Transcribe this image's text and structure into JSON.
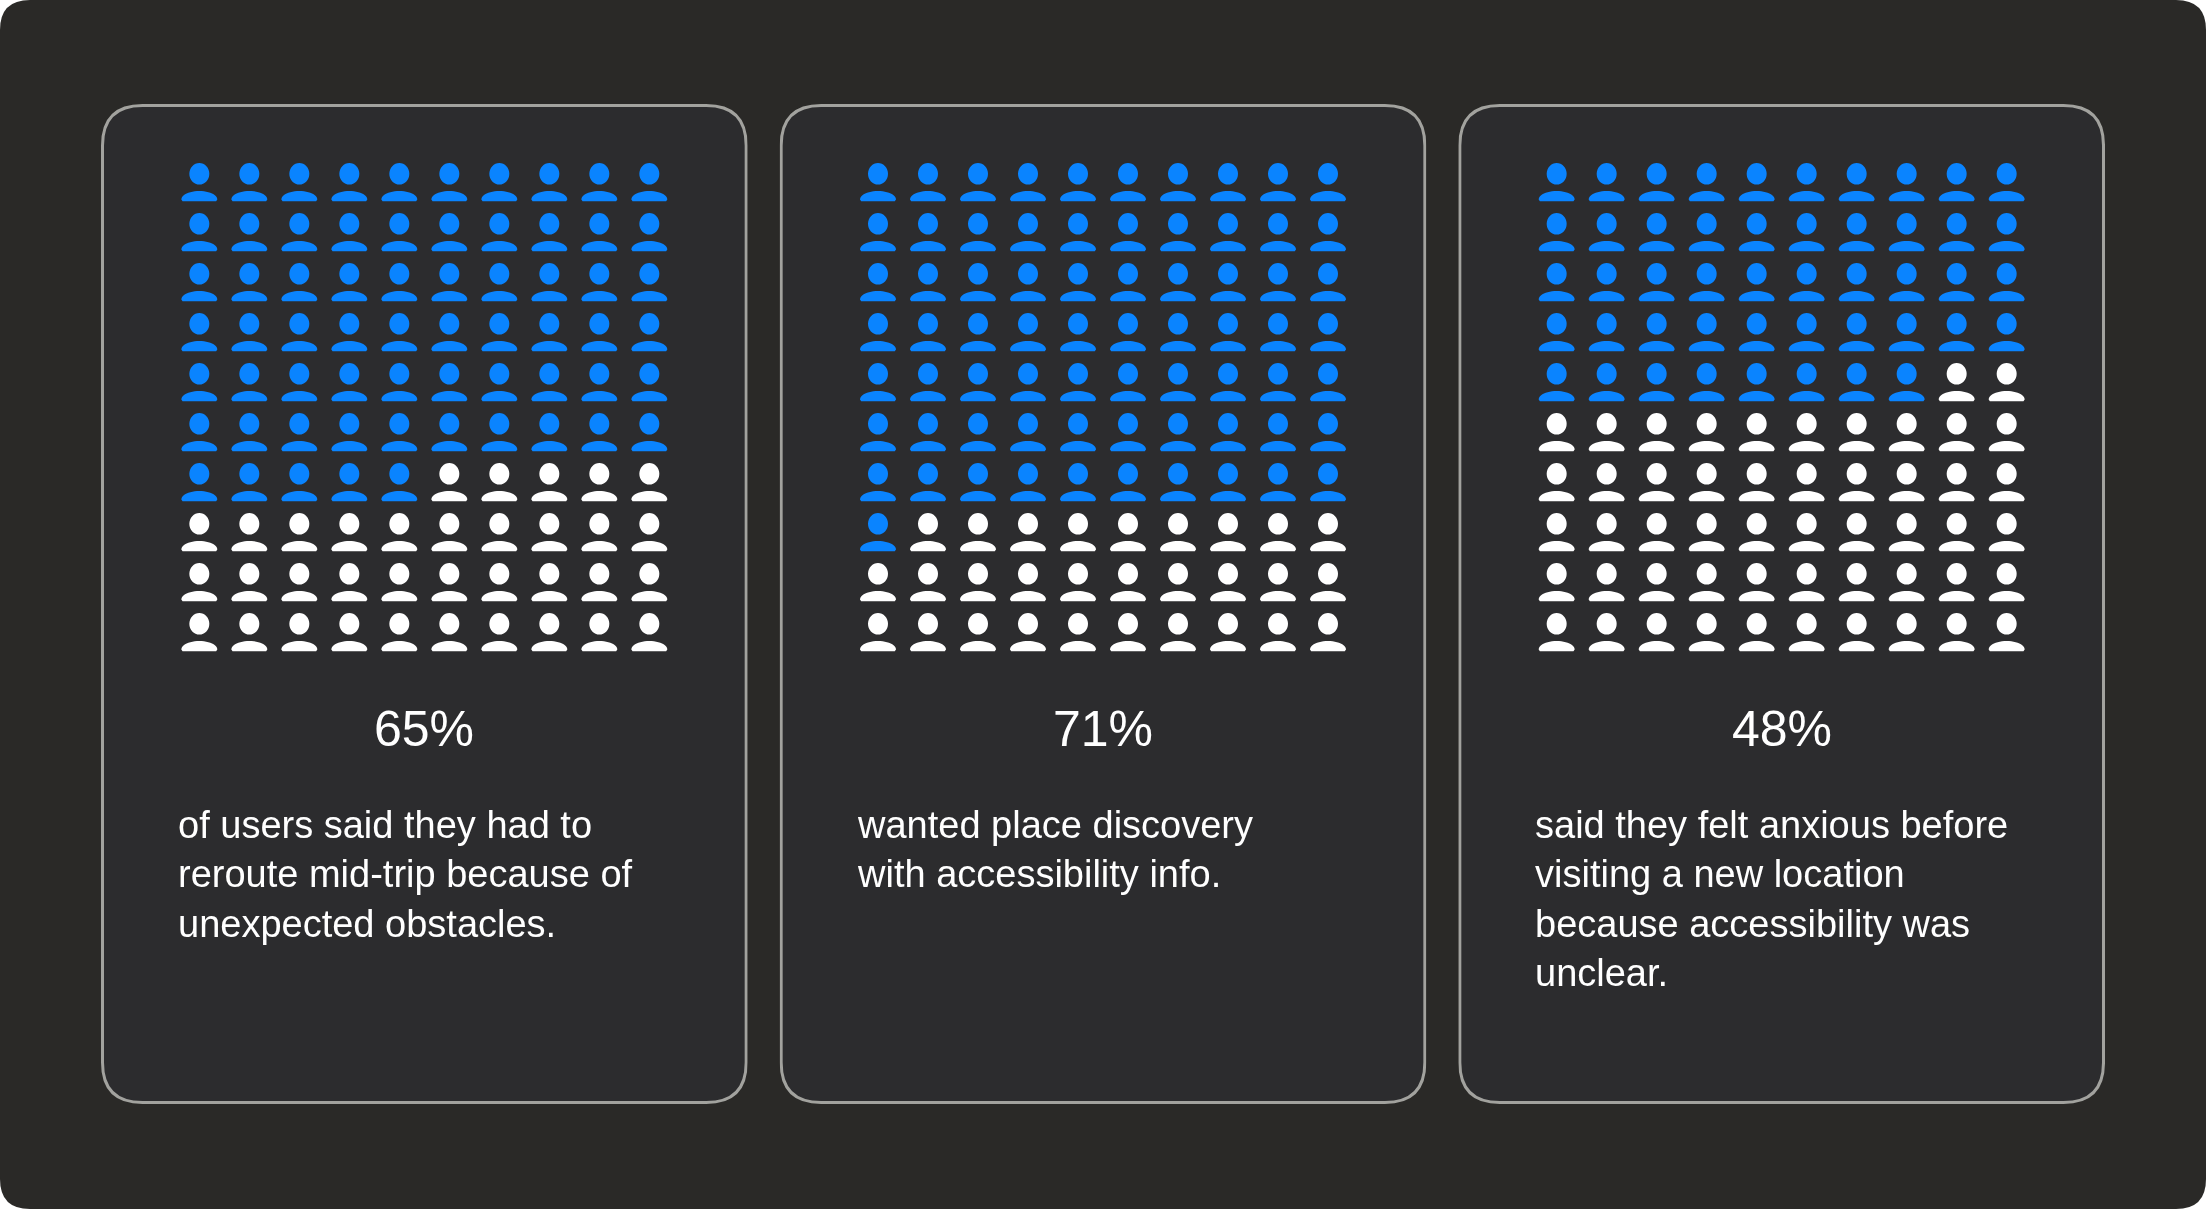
{
  "chart_data": [
    {
      "type": "other",
      "values": [
        65
      ],
      "value_labels": [
        "65%"
      ],
      "annotations": [
        "of users said they had to\nreroute mid-trip because of\nunexpected obstacles."
      ]
    },
    {
      "type": "other",
      "values": [
        71
      ],
      "value_labels": [
        "71%"
      ],
      "annotations": [
        "wanted place discovery\nwith accessibility info."
      ]
    },
    {
      "type": "other",
      "values": [
        48
      ],
      "value_labels": [
        "48%"
      ],
      "annotations": [
        "said they felt anxious before\nvisiting a new location\nbecause accessibility was\nunclear."
      ]
    }
  ]
}
